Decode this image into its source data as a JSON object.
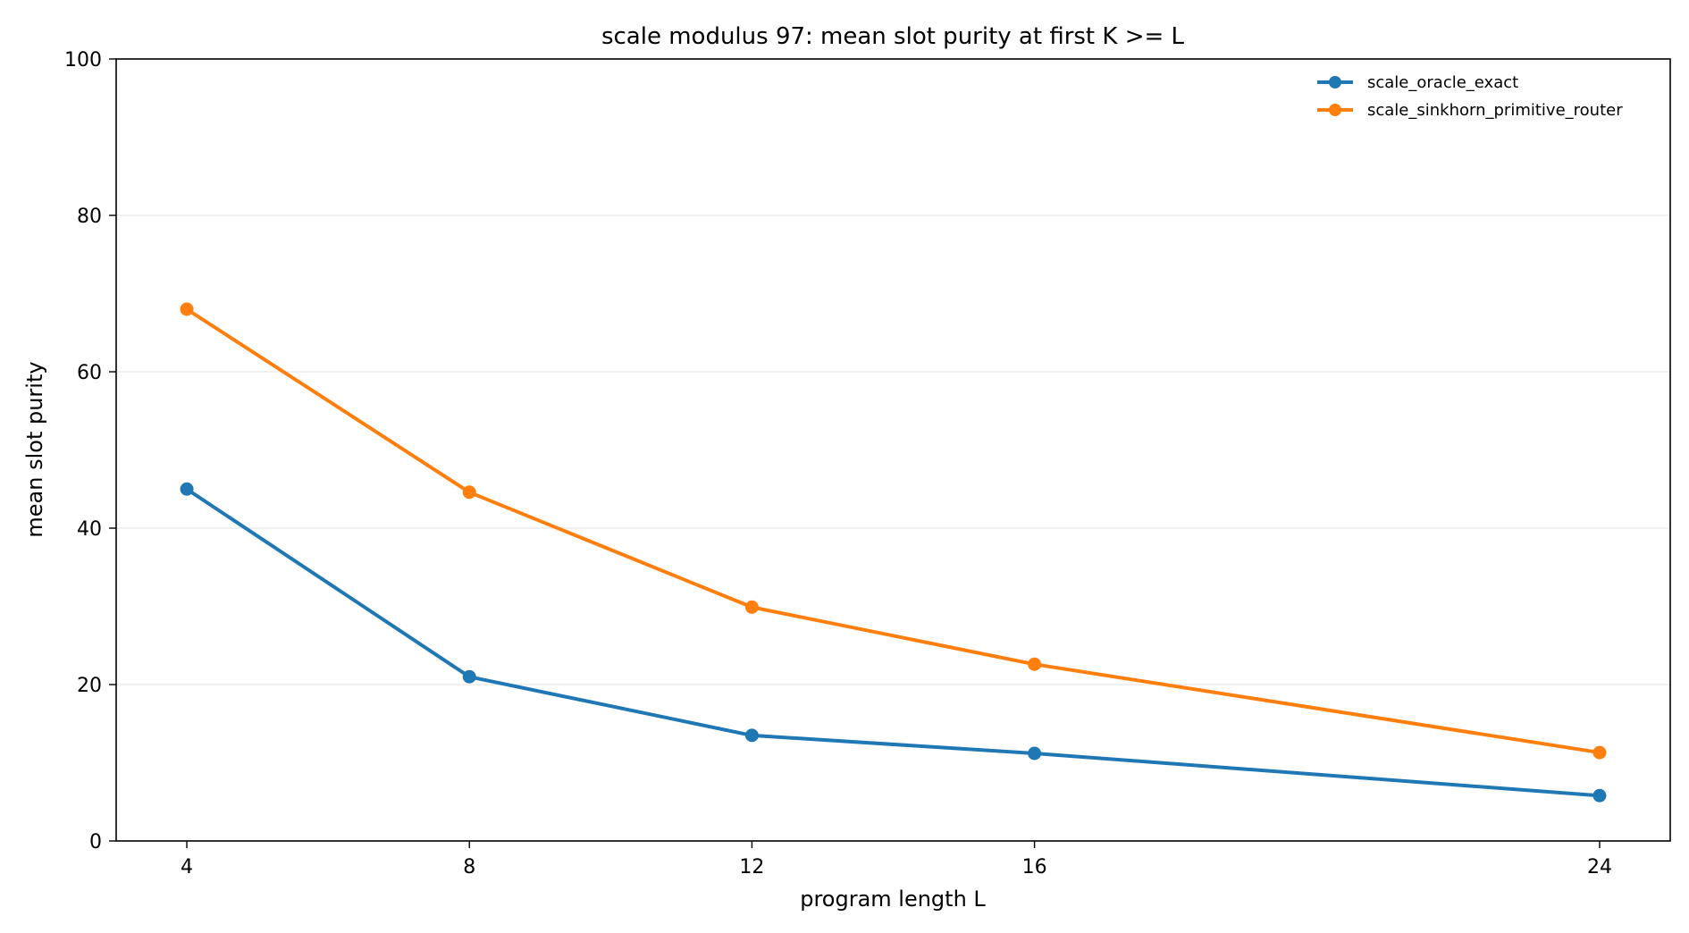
{
  "chart_data": {
    "type": "line",
    "title": "scale modulus 97: mean slot purity at first K >= L",
    "xlabel": "program length L",
    "ylabel": "mean slot purity",
    "x": [
      4,
      8,
      12,
      16,
      24
    ],
    "xlim": [
      3,
      25
    ],
    "ylim": [
      0,
      100
    ],
    "xticks": [
      "4",
      "8",
      "12",
      "16",
      "24"
    ],
    "yticks": [
      "0",
      "20",
      "40",
      "60",
      "80",
      "100"
    ],
    "grid": "horizontal",
    "legend_position": "top-right",
    "series": [
      {
        "name": "scale_oracle_exact",
        "color": "#1f77b4",
        "values": [
          45.0,
          21.0,
          13.5,
          11.2,
          5.8
        ]
      },
      {
        "name": "scale_sinkhorn_primitive_router",
        "color": "#ff7f0e",
        "values": [
          68.0,
          44.6,
          29.9,
          22.6,
          11.3
        ]
      }
    ]
  }
}
